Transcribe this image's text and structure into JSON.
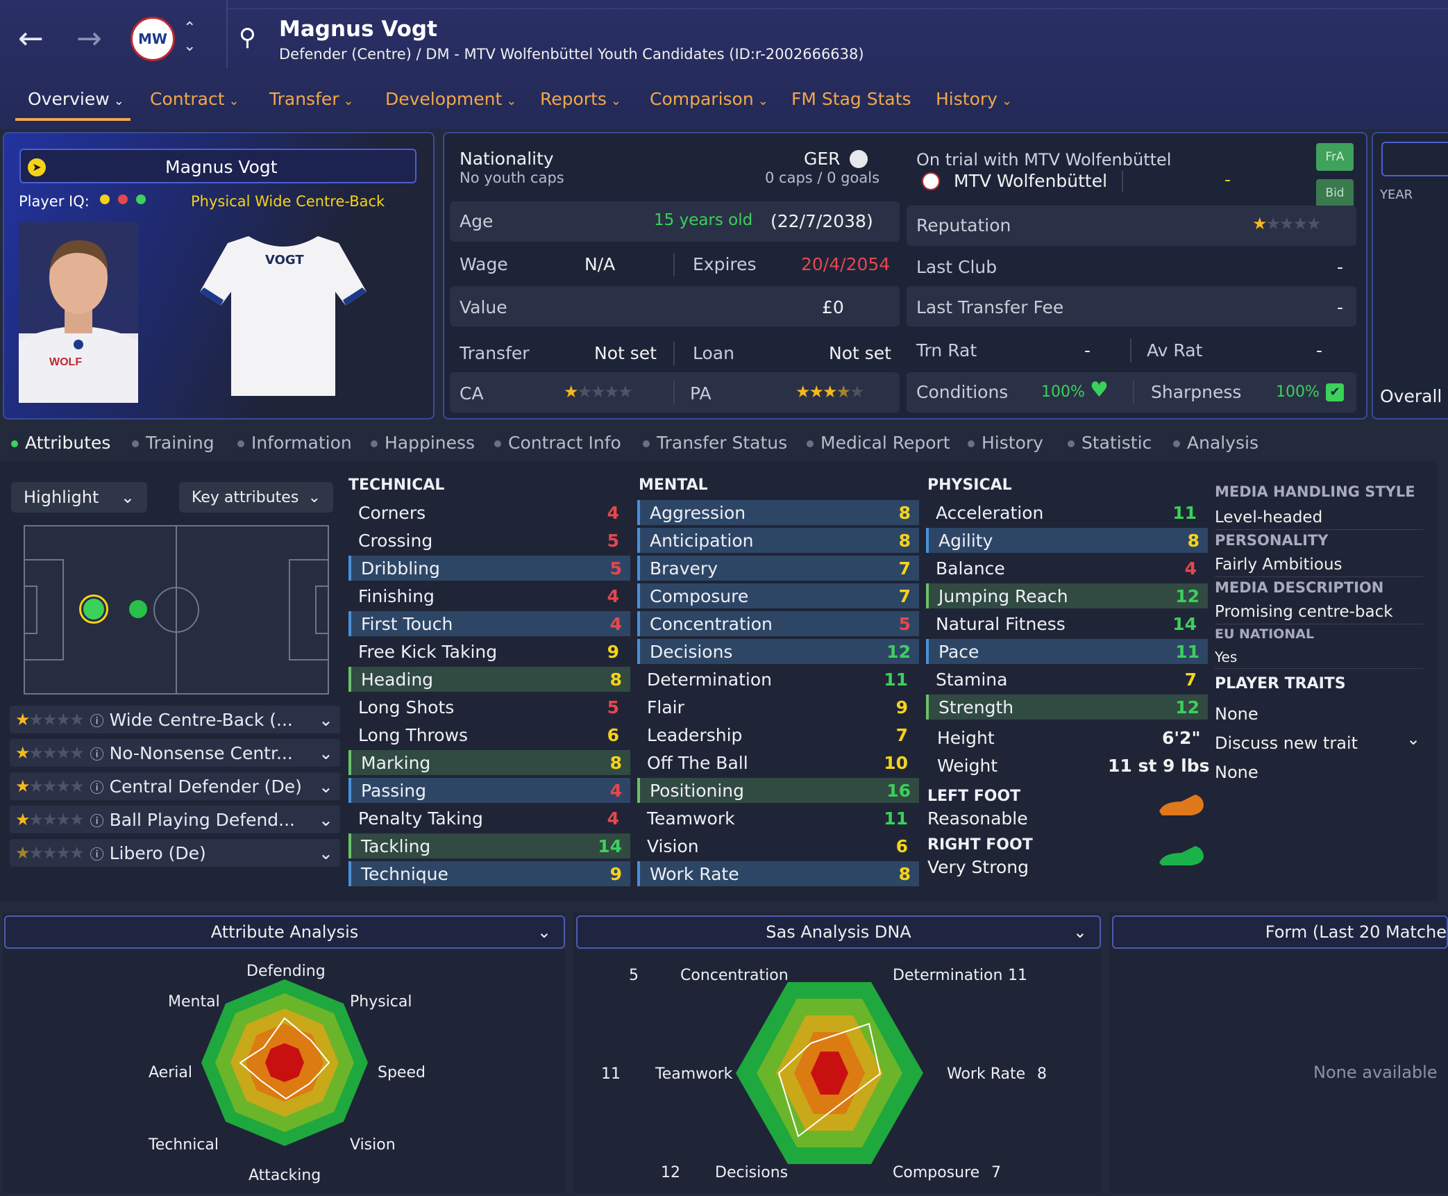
{
  "header": {
    "name": "Magnus Vogt",
    "subtitle": "Defender (Centre) / DM - MTV Wolfenbüttel Youth Candidates (ID:r-2002666638)",
    "tabs": [
      "Overview",
      "Contract",
      "Transfer",
      "Development",
      "Reports",
      "Comparison",
      "FM Stag Stats",
      "History"
    ]
  },
  "profile": {
    "name": "Magnus Vogt",
    "iq_label": "Player IQ:",
    "iq_role": "Physical Wide Centre-Back",
    "shirt_name": "VOGT"
  },
  "info": {
    "nationality_label": "Nationality",
    "nationality_value": "GER",
    "youth_caps": "No youth caps",
    "caps_goals": "0 caps / 0 goals",
    "age_label": "Age",
    "age_value": "15 years old",
    "dob": "(22/7/2038)",
    "wage_label": "Wage",
    "wage_value": "N/A",
    "expires_label": "Expires",
    "expires_value": "20/4/2054",
    "value_label": "Value",
    "value_value": "£0",
    "transfer_label": "Transfer",
    "transfer_value": "Not set",
    "loan_label": "Loan",
    "loan_value": "Not set",
    "ca_label": "CA",
    "ca_stars": 1,
    "pa_label": "PA",
    "pa_stars": 3.5
  },
  "club": {
    "trial_text": "On trial with MTV Wolfenbüttel",
    "club_name": "MTV Wolfenbüttel",
    "dash": "-",
    "fra_label": "FrA",
    "bid_label": "Bid",
    "reputation_label": "Reputation",
    "reputation_stars": 1,
    "last_club_label": "Last Club",
    "last_club_value": "-",
    "last_fee_label": "Last Transfer Fee",
    "last_fee_value": "-",
    "trn_rat_label": "Trn Rat",
    "trn_rat_value": "-",
    "av_rat_label": "Av Rat",
    "av_rat_value": "-",
    "conditions_label": "Conditions",
    "conditions_value": "100%",
    "sharpness_label": "Sharpness",
    "sharpness_value": "100%"
  },
  "right_stub": {
    "year": "YEAR",
    "overall": "Overall"
  },
  "subtabs": [
    "Attributes",
    "Training",
    "Information",
    "Happiness",
    "Contract Info",
    "Transfer Status",
    "Medical Report",
    "History",
    "Statistic",
    "Analysis"
  ],
  "controls": {
    "highlight": "Highlight",
    "key_attributes": "Key attributes"
  },
  "roles": [
    {
      "name": "Wide Centre-Back (...",
      "stars": 1
    },
    {
      "name": "No-Nonsense Centr...",
      "stars": 1
    },
    {
      "name": "Central Defender (De)",
      "stars": 1
    },
    {
      "name": "Ball Playing Defend...",
      "stars": 1
    },
    {
      "name": "Libero (De)",
      "stars": 0.5
    }
  ],
  "technical": {
    "title": "TECHNICAL",
    "items": [
      {
        "name": "Corners",
        "value": "4",
        "hl": "",
        "color": "red"
      },
      {
        "name": "Crossing",
        "value": "5",
        "hl": "",
        "color": "red"
      },
      {
        "name": "Dribbling",
        "value": "5",
        "hl": "blue",
        "color": "red"
      },
      {
        "name": "Finishing",
        "value": "4",
        "hl": "",
        "color": "red"
      },
      {
        "name": "First Touch",
        "value": "4",
        "hl": "blue",
        "color": "red"
      },
      {
        "name": "Free Kick Taking",
        "value": "9",
        "hl": "",
        "color": "yellow"
      },
      {
        "name": "Heading",
        "value": "8",
        "hl": "green",
        "color": "yellow"
      },
      {
        "name": "Long Shots",
        "value": "5",
        "hl": "",
        "color": "red"
      },
      {
        "name": "Long Throws",
        "value": "6",
        "hl": "",
        "color": "yellow"
      },
      {
        "name": "Marking",
        "value": "8",
        "hl": "green",
        "color": "yellow"
      },
      {
        "name": "Passing",
        "value": "4",
        "hl": "blue",
        "color": "red"
      },
      {
        "name": "Penalty Taking",
        "value": "4",
        "hl": "",
        "color": "red"
      },
      {
        "name": "Tackling",
        "value": "14",
        "hl": "green",
        "color": "green"
      },
      {
        "name": "Technique",
        "value": "9",
        "hl": "blue",
        "color": "yellow"
      }
    ]
  },
  "mental": {
    "title": "MENTAL",
    "items": [
      {
        "name": "Aggression",
        "value": "8",
        "hl": "blue",
        "color": "yellow"
      },
      {
        "name": "Anticipation",
        "value": "8",
        "hl": "blue",
        "color": "yellow"
      },
      {
        "name": "Bravery",
        "value": "7",
        "hl": "blue",
        "color": "yellow"
      },
      {
        "name": "Composure",
        "value": "7",
        "hl": "blue",
        "color": "yellow"
      },
      {
        "name": "Concentration",
        "value": "5",
        "hl": "blue",
        "color": "red"
      },
      {
        "name": "Decisions",
        "value": "12",
        "hl": "blue",
        "color": "green"
      },
      {
        "name": "Determination",
        "value": "11",
        "hl": "",
        "color": "green"
      },
      {
        "name": "Flair",
        "value": "9",
        "hl": "",
        "color": "yellow"
      },
      {
        "name": "Leadership",
        "value": "7",
        "hl": "",
        "color": "yellow"
      },
      {
        "name": "Off The Ball",
        "value": "10",
        "hl": "",
        "color": "yellow"
      },
      {
        "name": "Positioning",
        "value": "16",
        "hl": "green",
        "color": "green"
      },
      {
        "name": "Teamwork",
        "value": "11",
        "hl": "",
        "color": "green"
      },
      {
        "name": "Vision",
        "value": "6",
        "hl": "",
        "color": "yellow"
      },
      {
        "name": "Work Rate",
        "value": "8",
        "hl": "blue",
        "color": "yellow"
      }
    ]
  },
  "physical": {
    "title": "PHYSICAL",
    "items": [
      {
        "name": "Acceleration",
        "value": "11",
        "hl": "",
        "color": "green"
      },
      {
        "name": "Agility",
        "value": "8",
        "hl": "blue",
        "color": "yellow"
      },
      {
        "name": "Balance",
        "value": "4",
        "hl": "",
        "color": "red"
      },
      {
        "name": "Jumping Reach",
        "value": "12",
        "hl": "green",
        "color": "green"
      },
      {
        "name": "Natural Fitness",
        "value": "14",
        "hl": "",
        "color": "green"
      },
      {
        "name": "Pace",
        "value": "11",
        "hl": "blue",
        "color": "green"
      },
      {
        "name": "Stamina",
        "value": "7",
        "hl": "",
        "color": "yellow"
      },
      {
        "name": "Strength",
        "value": "12",
        "hl": "green",
        "color": "green"
      }
    ],
    "height_label": "Height",
    "height_value": "6'2\"",
    "weight_label": "Weight",
    "weight_value": "11 st 9 lbs",
    "left_foot_label": "LEFT FOOT",
    "left_foot_value": "Reasonable",
    "right_foot_label": "RIGHT FOOT",
    "right_foot_value": "Very Strong"
  },
  "side": {
    "media_style_h": "MEDIA HANDLING STYLE",
    "media_style_v": "Level-headed",
    "personality_h": "PERSONALITY",
    "personality_v": "Fairly Ambitious",
    "media_desc_h": "MEDIA DESCRIPTION",
    "media_desc_v": "Promising centre-back",
    "eu_h": "EU NATIONAL",
    "eu_v": "Yes",
    "traits_h": "PLAYER TRAITS",
    "traits_v": "None",
    "discuss": "Discuss new trait",
    "discuss_v": "None"
  },
  "attr_analysis": {
    "title": "Attribute Analysis",
    "labels": [
      "Defending",
      "Physical",
      "Speed",
      "Vision",
      "Attacking",
      "Technical",
      "Aerial",
      "Mental"
    ]
  },
  "dna": {
    "title": "Sas Analysis DNA",
    "labels": [
      {
        "name": "Concentration",
        "value": "5"
      },
      {
        "name": "Determination",
        "value": "11"
      },
      {
        "name": "Work Rate",
        "value": "8"
      },
      {
        "name": "Composure",
        "value": "7"
      },
      {
        "name": "Decisions",
        "value": "12"
      },
      {
        "name": "Teamwork",
        "value": "11"
      }
    ]
  },
  "form": {
    "title": "Form (Last 20 Matche",
    "empty": "None available"
  },
  "colors": {
    "accent": "#f0a84a",
    "green": "#3bd15a",
    "red": "#e5484d",
    "yellow": "#f5d319"
  }
}
